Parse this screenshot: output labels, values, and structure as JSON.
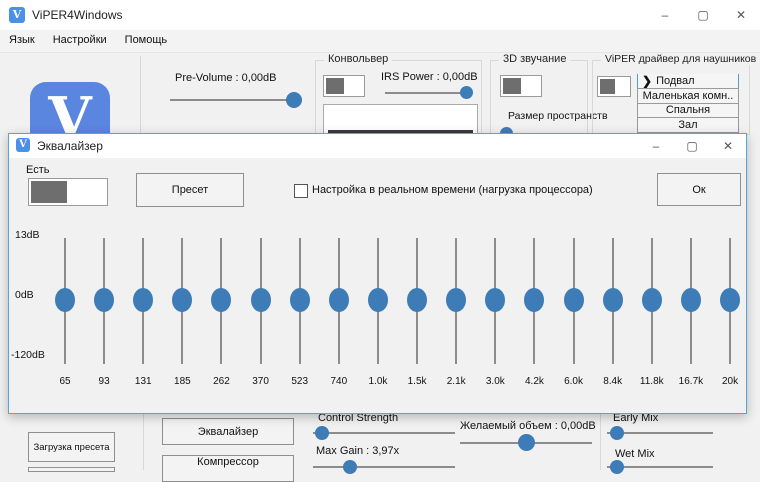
{
  "window": {
    "title": "ViPER4Windows",
    "menu": [
      {
        "label": "Язык"
      },
      {
        "label": "Настройки"
      },
      {
        "label": "Помощь"
      }
    ],
    "caption": {
      "minimize": "–",
      "maximize": "▢",
      "close": "✕"
    }
  },
  "main": {
    "logo_letter": "V",
    "pre_volume_label": "Pre-Volume : 0,00dB",
    "convolver": {
      "title": "Конвольвер",
      "irs_power_label": "IRS Power : 0,00dB"
    },
    "sound3d": {
      "title": "3D звучание",
      "space_size_label": "Размер пространств"
    },
    "headphone": {
      "title": "ViPER драйвер для наушников",
      "selected_marker": "❯",
      "items": [
        {
          "label": "Подвал",
          "selected": true
        },
        {
          "label": "Маленькая комн..",
          "selected": false
        },
        {
          "label": "Спальня",
          "selected": false
        },
        {
          "label": "Зал",
          "selected": false
        }
      ]
    },
    "bottom": {
      "load_preset_button": "Загрузка пресета",
      "equalizer_button": "Эквалайзер",
      "compressor_button": "Компрессор",
      "control_strength_label": "Control Strength",
      "max_gain_label": "Max Gain : 3,97x",
      "desired_volume_label": "Желаемый объем : 0,00dB",
      "early_mix_label": "Early Mix",
      "wet_mix_label": "Wet Mix"
    }
  },
  "dialog": {
    "title": "Эквалайзер",
    "caption": {
      "minimize": "–",
      "maximize": "▢",
      "close": "✕"
    },
    "enable_label": "Есть",
    "preset_button": "Пресет",
    "realtime_checkbox_label": "Настройка в реальном времени (нагрузка процессора)",
    "realtime_checked": false,
    "ok_button": "Ок",
    "equalizer": {
      "scale_labels": {
        "top": "13dB",
        "mid": "0dB",
        "bottom": "-120dB"
      },
      "bands": [
        "65",
        "93",
        "131",
        "185",
        "262",
        "370",
        "523",
        "740",
        "1.0k",
        "1.5k",
        "2.1k",
        "3.0k",
        "4.2k",
        "6.0k",
        "8.4k",
        "11.8k",
        "16.7k",
        "20k"
      ],
      "values_db": [
        0,
        0,
        0,
        0,
        0,
        0,
        0,
        0,
        0,
        0,
        0,
        0,
        0,
        0,
        0,
        0,
        0,
        0
      ]
    }
  },
  "colors": {
    "accent_blue": "#3d7cb6",
    "logo_blue": "#5b86e0",
    "dialog_border_blue": "#56a4d9",
    "toggle_dark": "#6e6e6e"
  }
}
